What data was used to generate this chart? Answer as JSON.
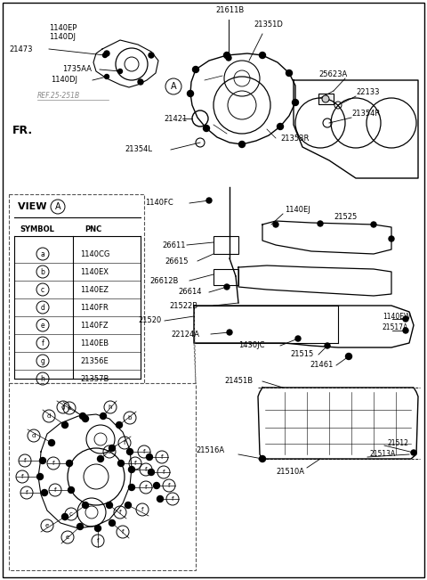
{
  "bg_color": "#ffffff",
  "fig_width": 4.8,
  "fig_height": 6.51,
  "dpi": 100,
  "view_a_symbols": [
    "a",
    "b",
    "c",
    "d",
    "e",
    "f",
    "g",
    "h"
  ],
  "view_a_pncs": [
    "1140CG",
    "1140EX",
    "1140EZ",
    "1140FR",
    "1140FZ",
    "1140EB",
    "21356E",
    "21357B"
  ]
}
